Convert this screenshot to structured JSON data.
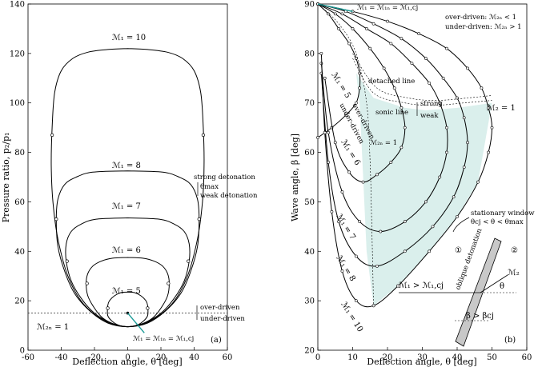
{
  "chart_data": [
    {
      "type": "line",
      "panel_label": "(a)",
      "xlabel": "Deflection angle, θ [deg]",
      "ylabel": "Pressure ratio, p₂/p₁",
      "xlim": [
        -60,
        60
      ],
      "ylim": [
        0,
        140
      ],
      "xticks": [
        "-60",
        "-40",
        "-20",
        "0",
        "20",
        "40",
        "60"
      ],
      "yticks": [
        "0",
        "20",
        "40",
        "60",
        "80",
        "100",
        "120",
        "140"
      ],
      "series": [
        {
          "name": "ℳ₁ = 5",
          "x": [
            0,
            5,
            9,
            12,
            12,
            11,
            8,
            4,
            0
          ],
          "y": [
            9.5,
            10,
            11.5,
            14,
            18,
            20,
            22,
            23.3,
            23.5
          ]
        },
        {
          "name": "ℳ₁ = 6",
          "x": [
            0,
            8,
            15,
            20,
            24,
            25,
            24,
            21,
            16,
            9,
            0
          ],
          "y": [
            9.5,
            10.5,
            13,
            17,
            22,
            27,
            31,
            34,
            36,
            37.2,
            37.5
          ]
        },
        {
          "name": "ℳ₁ = 7",
          "x": [
            0,
            10,
            20,
            28,
            34,
            37,
            37,
            34,
            28,
            19,
            0
          ],
          "y": [
            9.5,
            11,
            15,
            21,
            28,
            36,
            43,
            48,
            51,
            53,
            53.5
          ]
        },
        {
          "name": "ℳ₁ = 8",
          "x": [
            0,
            12,
            23,
            32,
            38,
            42,
            43,
            42,
            38,
            31,
            21,
            0
          ],
          "y": [
            9.5,
            11,
            16,
            23,
            32,
            42,
            53,
            61,
            67,
            70,
            72,
            72.5
          ]
        },
        {
          "name": "ℳ₁ = 10",
          "x": [
            0,
            14,
            27,
            36,
            42,
            45,
            46,
            45.5,
            44,
            40,
            33,
            24,
            12,
            0
          ],
          "y": [
            9.5,
            12,
            19,
            30,
            45,
            60,
            75,
            90,
            104,
            113,
            118,
            120.5,
            121.6,
            122
          ]
        }
      ],
      "points": {
        "x": [
          12,
          24.5,
          36.5,
          43,
          45.5
        ],
        "y": [
          17,
          27,
          36,
          53,
          87
        ]
      },
      "reference_line": {
        "y": 15,
        "label": "ℳ₂ₙ = 1"
      },
      "annotations": {
        "m1_5": "ℳ₁ = 5",
        "m1_6": "ℳ₁ = 6",
        "m1_7": "ℳ₁ = 7",
        "m1_8": "ℳ₁ = 8",
        "m1_10": "ℳ₁ = 10",
        "strong": "strong detonation",
        "theta_max": "θmax",
        "weak": "weak detonation",
        "over_driven": "over-driven",
        "under_driven": "under-driven",
        "m2n": "ℳ₂ₙ = 1",
        "cj": "ℳ₁ = ℳ₁ₙ = ℳ₁,cj"
      }
    },
    {
      "type": "line",
      "panel_label": "(b)",
      "xlabel": "Deflection angle, θ [deg]",
      "ylabel": "Wave angle, β [deg]",
      "xlim": [
        0,
        60
      ],
      "ylim": [
        20,
        90
      ],
      "xticks": [
        "0",
        "10",
        "20",
        "30",
        "40",
        "50",
        "60"
      ],
      "yticks": [
        "20",
        "30",
        "40",
        "50",
        "60",
        "70",
        "80",
        "90"
      ],
      "series": [
        {
          "name": "ℳ₁ = 5",
          "x": [
            0,
            3,
            6,
            9,
            11,
            12,
            12,
            11,
            8,
            4,
            0
          ],
          "y": [
            90,
            88,
            85,
            82,
            79,
            76,
            73,
            70,
            67.5,
            65,
            63
          ]
        },
        {
          "name": "ℳ₁ = 6",
          "x": [
            0,
            5,
            10,
            15,
            19,
            22,
            24,
            25,
            24,
            21,
            17,
            13,
            9,
            5,
            2
          ],
          "y": [
            90,
            88,
            85,
            81,
            77,
            73,
            69,
            65,
            61,
            58,
            55.5,
            54,
            56,
            62,
            75
          ]
        },
        {
          "name": "ℳ₁ = 7",
          "x": [
            0,
            7,
            14,
            21,
            27,
            32,
            35,
            37,
            37,
            35,
            31,
            25,
            18,
            12,
            7,
            3,
            1
          ],
          "y": [
            90,
            88,
            85,
            82,
            78,
            74,
            70,
            65,
            60,
            55,
            50,
            46,
            44,
            46,
            52,
            64,
            78
          ]
        },
        {
          "name": "ℳ₁ = 8",
          "x": [
            0,
            8,
            16,
            24,
            31,
            36,
            40,
            42,
            43,
            42,
            39,
            33,
            25,
            17,
            11,
            6,
            3,
            1
          ],
          "y": [
            90,
            88.5,
            86,
            83,
            79,
            75,
            71,
            67,
            62,
            57,
            51,
            45,
            40,
            37,
            39,
            46,
            58,
            76
          ]
        },
        {
          "name": "ℳ₁ = 10",
          "x": [
            0,
            10,
            20,
            29,
            37,
            43,
            47,
            49,
            50,
            49,
            46,
            40,
            32,
            23,
            16,
            11,
            7,
            4,
            2,
            1
          ],
          "y": [
            90,
            88.5,
            86.5,
            84,
            81,
            77,
            73,
            69,
            65,
            60,
            54,
            47,
            40,
            33,
            29,
            30,
            36,
            48,
            64,
            80
          ]
        }
      ],
      "stationary_window": "θcj < θ < θmax",
      "annotations": {
        "cj": "ℳ₁ = ℳ₁ₙ = ℳ₁,cj",
        "over_label": "over-driven: ℳ₂ₙ < 1",
        "under_label": "under-driven: ℳ₂ₙ > 1",
        "detached": "detached line",
        "sonic": "sonic line",
        "strong": "strong",
        "weak": "weak",
        "m2": "ℳ₂ = 1",
        "m2n": "ℳ₂ₙ = 1",
        "over": "over-driven",
        "under": "under-driven",
        "window_title": "stationary window",
        "window_range": "θcj < θ < θmax",
        "m1_5": "ℳ₁ = 5",
        "m1_6": "ℳ₁ = 6",
        "m1_7": "ℳ₁ = 7",
        "m1_8": "ℳ₁ = 8",
        "m1_10": "ℳ₁ = 10",
        "region1": "①",
        "region2": "②",
        "oblique": "oblique detonation",
        "m1cond": "ℳ₁ > ℳ₁,cj",
        "theta": "θ",
        "m2vec": "ℳ₂",
        "beta": "β > βcj"
      }
    }
  ]
}
